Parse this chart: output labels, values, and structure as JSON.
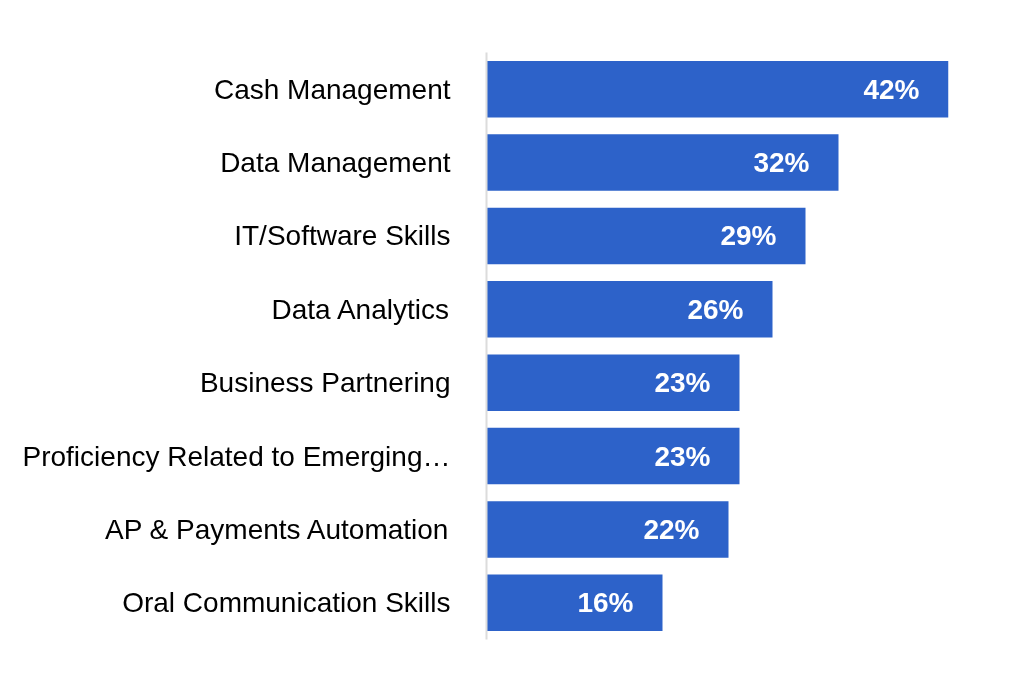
{
  "chart_data": {
    "type": "bar",
    "orientation": "horizontal",
    "categories": [
      "Cash Management",
      "Data Management",
      "IT/Software Skills",
      "Data Analytics",
      "Business Partnering",
      "Proficiency Related to Emerging…",
      "AP & Payments Automation",
      "Oral Communication Skills"
    ],
    "values": [
      42,
      32,
      29,
      26,
      23,
      23,
      22,
      16
    ],
    "value_labels": [
      "42%",
      "32%",
      "29%",
      "26%",
      "23%",
      "23%",
      "22%",
      "16%"
    ],
    "color": "#2d62c9"
  }
}
